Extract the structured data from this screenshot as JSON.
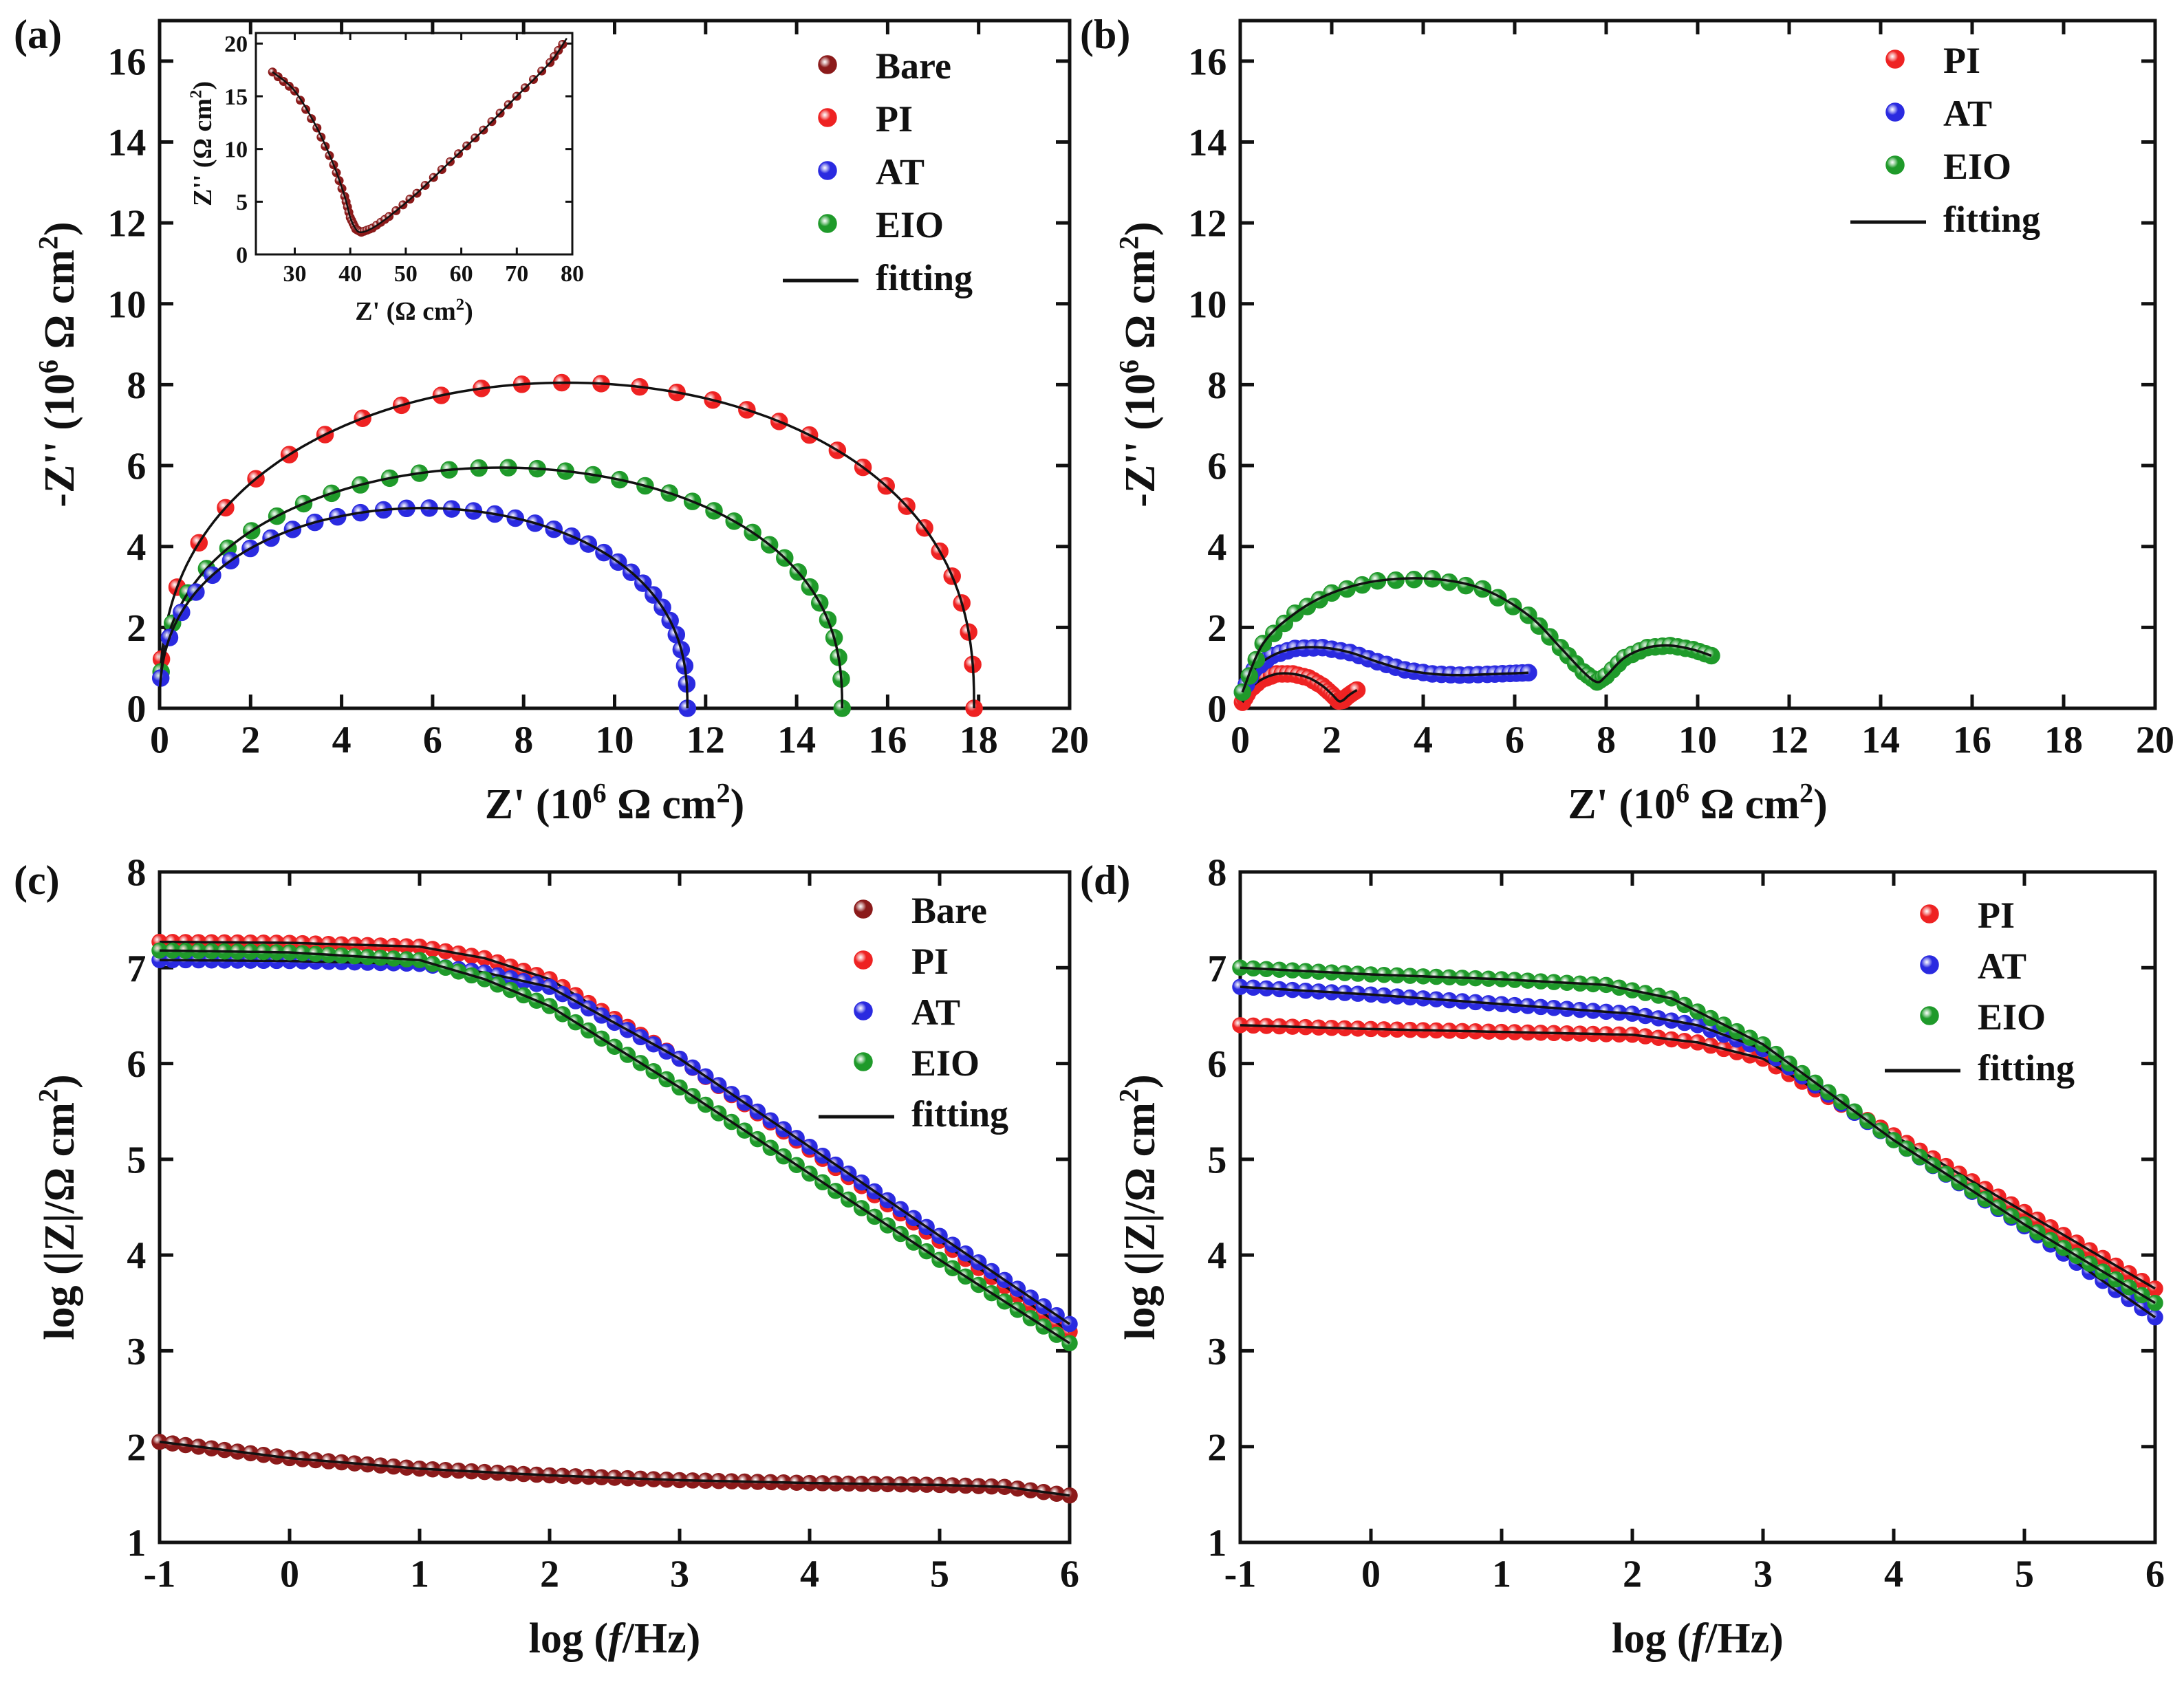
{
  "figure": {
    "panel_labels": [
      "(a)",
      "(b)",
      "(c)",
      "(d)"
    ]
  },
  "colors": {
    "Bare": "#8b1a1a",
    "PI": "#ee2222",
    "AT": "#2a2ae0",
    "EIO": "#1f9a2a",
    "fitting": "#000000"
  },
  "chart_data": [
    {
      "id": "a",
      "type": "scatter",
      "panel_label": "(a)",
      "xlabel": "Z' (10^6 Ω cm^2)",
      "ylabel": "-Z'' (10^6 Ω cm^2)",
      "xlim": [
        0,
        20
      ],
      "ylim": [
        0,
        17
      ],
      "xticks": [
        0,
        2,
        4,
        6,
        8,
        10,
        12,
        14,
        16,
        18,
        20
      ],
      "yticks": [
        0,
        2,
        4,
        6,
        8,
        10,
        12,
        14,
        16
      ],
      "legend": [
        "Bare",
        "PI",
        "AT",
        "EIO",
        "fitting"
      ],
      "series": [
        {
          "name": "PI",
          "kind": "arc",
          "R": 17.9,
          "peak": 8.05,
          "n": 30
        },
        {
          "name": "EIO",
          "kind": "arc",
          "R": 15.0,
          "peak": 5.95,
          "n": 34
        },
        {
          "name": "AT",
          "kind": "arc",
          "R": 11.6,
          "peak": 4.95,
          "n": 34
        }
      ],
      "inset": {
        "xlabel": "Z' (Ω cm^2)",
        "ylabel": "Z'' (Ω cm^2)",
        "xlim": [
          23,
          80
        ],
        "ylim": [
          0,
          21
        ],
        "xticks": [
          30,
          40,
          50,
          60,
          70,
          80
        ],
        "yticks": [
          0,
          5,
          10,
          15,
          20
        ],
        "series": [
          {
            "name": "Bare",
            "x": [
              26,
              30,
              34,
              37,
              39,
              40,
              41,
              42,
              44,
              47,
              52,
              58,
              64,
              70,
              76,
              79
            ],
            "y": [
              17.3,
              15.5,
              12.0,
              8.5,
              5.5,
              3.5,
              2.4,
              2.1,
              2.5,
              3.6,
              5.8,
              8.8,
              11.8,
              15.0,
              18.2,
              20.5
            ]
          }
        ]
      }
    },
    {
      "id": "b",
      "type": "scatter",
      "panel_label": "(b)",
      "xlabel": "Z' (10^6 Ω cm^2)",
      "ylabel": "-Z'' (10^6 Ω cm^2)",
      "xlim": [
        0,
        20
      ],
      "ylim": [
        0,
        17
      ],
      "xticks": [
        0,
        2,
        4,
        6,
        8,
        10,
        12,
        14,
        16,
        18,
        20
      ],
      "yticks": [
        0,
        2,
        4,
        6,
        8,
        10,
        12,
        14,
        16
      ],
      "legend": [
        "PI",
        "AT",
        "EIO",
        "fitting"
      ],
      "series": [
        {
          "name": "PI",
          "x": [
            0.05,
            0.2,
            0.45,
            0.8,
            1.15,
            1.5,
            1.8,
            2.0,
            2.15,
            2.25,
            2.35,
            2.45,
            2.55
          ],
          "y": [
            0.15,
            0.45,
            0.7,
            0.85,
            0.85,
            0.75,
            0.55,
            0.35,
            0.18,
            0.2,
            0.3,
            0.38,
            0.45
          ]
        },
        {
          "name": "AT",
          "x": [
            0.05,
            0.3,
            0.7,
            1.2,
            1.8,
            2.4,
            3.0,
            3.6,
            4.2,
            4.8,
            5.4,
            5.9,
            6.3
          ],
          "y": [
            0.4,
            0.95,
            1.3,
            1.48,
            1.5,
            1.38,
            1.15,
            0.95,
            0.85,
            0.82,
            0.84,
            0.86,
            0.88
          ]
        },
        {
          "name": "EIO",
          "x": [
            0.05,
            0.5,
            1.2,
            2.0,
            3.0,
            4.2,
            5.3,
            6.3,
            7.0,
            7.5,
            7.8,
            8.0,
            8.4,
            8.9,
            9.4,
            9.9,
            10.3
          ],
          "y": [
            0.4,
            1.6,
            2.35,
            2.85,
            3.15,
            3.2,
            2.95,
            2.3,
            1.5,
            0.9,
            0.65,
            0.8,
            1.25,
            1.5,
            1.55,
            1.45,
            1.3
          ]
        }
      ]
    },
    {
      "id": "c",
      "type": "line",
      "panel_label": "(c)",
      "xlabel": "log (f/Hz)",
      "ylabel": "log (|Z|/Ω cm^2)",
      "xlim": [
        -1,
        6
      ],
      "ylim": [
        1,
        8
      ],
      "xticks": [
        -1,
        0,
        1,
        2,
        3,
        4,
        5,
        6
      ],
      "yticks": [
        1,
        2,
        3,
        4,
        5,
        6,
        7,
        8
      ],
      "legend": [
        "Bare",
        "PI",
        "AT",
        "EIO",
        "fitting"
      ],
      "series": [
        {
          "name": "PI",
          "x": [
            -1,
            0,
            1,
            1.5,
            2,
            3,
            4,
            5,
            6
          ],
          "y": [
            7.27,
            7.26,
            7.22,
            7.1,
            6.88,
            6.05,
            5.1,
            4.15,
            3.2
          ]
        },
        {
          "name": "AT",
          "x": [
            -1,
            0,
            1,
            1.5,
            2,
            3,
            4,
            5,
            6
          ],
          "y": [
            7.08,
            7.07,
            7.04,
            6.95,
            6.8,
            6.05,
            5.13,
            4.2,
            3.28
          ]
        },
        {
          "name": "EIO",
          "x": [
            -1,
            0,
            1,
            1.5,
            2,
            3,
            4,
            5,
            6
          ],
          "y": [
            7.18,
            7.16,
            7.08,
            6.88,
            6.6,
            5.75,
            4.85,
            3.95,
            3.08
          ]
        },
        {
          "name": "Bare",
          "x": [
            -1,
            0,
            1,
            2,
            3,
            4,
            5,
            5.5,
            6
          ],
          "y": [
            2.05,
            1.88,
            1.77,
            1.7,
            1.65,
            1.62,
            1.6,
            1.58,
            1.49
          ]
        }
      ]
    },
    {
      "id": "d",
      "type": "line",
      "panel_label": "(d)",
      "xlabel": "log (f/Hz)",
      "ylabel": "log (|Z|/Ω cm^2)",
      "xlim": [
        -1,
        6
      ],
      "ylim": [
        1,
        8
      ],
      "xticks": [
        -1,
        0,
        1,
        2,
        3,
        4,
        5,
        6
      ],
      "yticks": [
        1,
        2,
        3,
        4,
        5,
        6,
        7,
        8
      ],
      "legend": [
        "PI",
        "AT",
        "EIO",
        "fitting"
      ],
      "series": [
        {
          "name": "PI",
          "x": [
            -1,
            0,
            1,
            2,
            2.5,
            3,
            4,
            5,
            6
          ],
          "y": [
            6.4,
            6.36,
            6.33,
            6.3,
            6.22,
            6.05,
            5.25,
            4.45,
            3.65
          ]
        },
        {
          "name": "AT",
          "x": [
            -1,
            0,
            1,
            2,
            2.5,
            3,
            4,
            5,
            6
          ],
          "y": [
            6.8,
            6.72,
            6.62,
            6.52,
            6.4,
            6.15,
            5.2,
            4.3,
            3.35
          ]
        },
        {
          "name": "EIO",
          "x": [
            -1,
            0,
            1,
            1.8,
            2.3,
            3,
            4,
            5,
            6
          ],
          "y": [
            7.0,
            6.93,
            6.88,
            6.82,
            6.68,
            6.2,
            5.2,
            4.32,
            3.5
          ]
        }
      ]
    }
  ]
}
